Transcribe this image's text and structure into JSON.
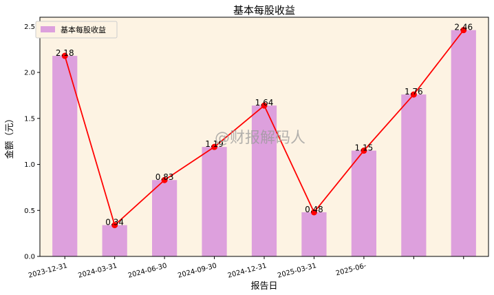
{
  "chart_data": {
    "type": "bar",
    "title": "基本每股收益",
    "xlabel": "报告日",
    "ylabel": "金额（元）",
    "categories": [
      "2023-12-31",
      "2024-03-31",
      "2024-06-30",
      "2024-09-30",
      "2024-12-31",
      "2025-03-31",
      "2025-06-",
      "",
      ""
    ],
    "series": [
      {
        "name": "基本每股收益",
        "kind": "bar",
        "values": [
          2.18,
          0.34,
          0.83,
          1.19,
          1.64,
          0.48,
          1.15,
          1.76,
          2.46
        ]
      },
      {
        "kind": "line",
        "values": [
          2.18,
          0.34,
          0.83,
          1.19,
          1.64,
          0.48,
          1.15,
          1.76,
          2.46
        ]
      }
    ],
    "data_labels": [
      "2.18",
      "0.34",
      "0.83",
      "1.19",
      "1.64",
      "0.48",
      "1.15",
      "1.76",
      "2.46"
    ],
    "ylim": [
      0,
      2.6
    ],
    "yticks": [
      0.0,
      0.5,
      1.0,
      1.5,
      2.0,
      2.5
    ],
    "ytick_labels": [
      "0.0",
      "0.5",
      "1.0",
      "1.5",
      "2.0",
      "2.5"
    ],
    "grid": false,
    "legend_position": "top-left",
    "watermark": "@财报解码人",
    "colors": {
      "bar": "#dda0dd",
      "line": "#ff0000",
      "plot_background": "#fdf3e3",
      "legend_swatch": "#dda0dd"
    }
  }
}
